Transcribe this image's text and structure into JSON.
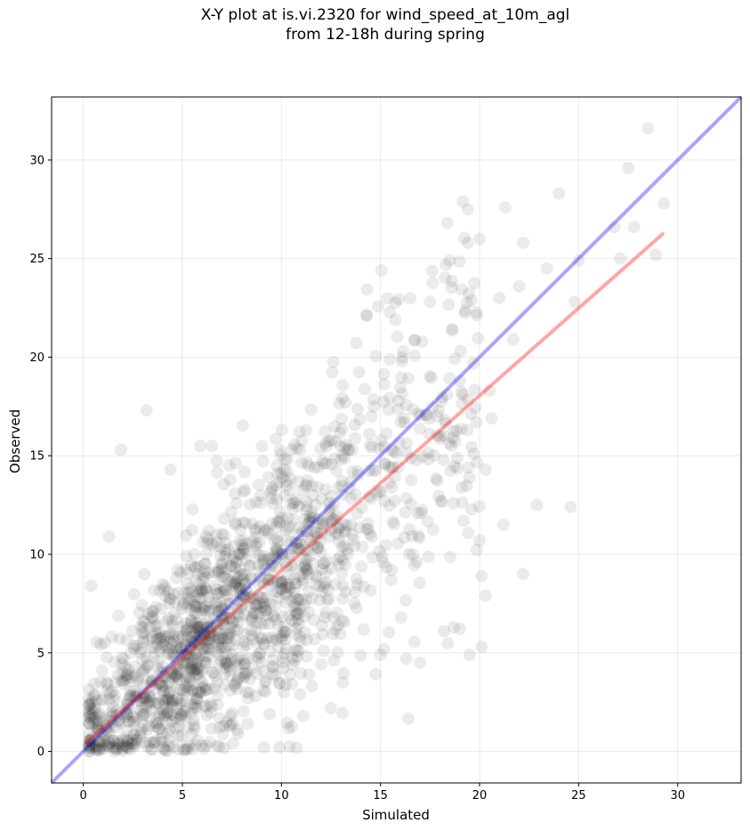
{
  "chart_data": {
    "type": "scatter",
    "title_line1": "X-Y plot at is.vi.2320 for wind_speed_at_10m_agl",
    "title_line2": "from 12-18h during spring",
    "xlabel": "Simulated",
    "ylabel": "Observed",
    "xlim": [
      -1.6,
      33.2
    ],
    "ylim": [
      -1.6,
      33.2
    ],
    "xticks": [
      0,
      5,
      10,
      15,
      20,
      25,
      30
    ],
    "yticks": [
      0,
      5,
      10,
      15,
      20,
      25,
      30
    ],
    "grid": true,
    "scatter_color": "#000000",
    "scatter_alpha": 0.08,
    "point_count_estimate": 1600,
    "outliers": [
      [
        28.5,
        31.6
      ],
      [
        27.5,
        29.6
      ],
      [
        24.0,
        28.3
      ],
      [
        21.3,
        27.6
      ],
      [
        26.8,
        26.6
      ],
      [
        27.8,
        26.6
      ],
      [
        29.3,
        27.8
      ],
      [
        20.0,
        26.0
      ],
      [
        19.4,
        25.8
      ],
      [
        22.2,
        25.8
      ],
      [
        25.0,
        24.9
      ],
      [
        27.1,
        25.0
      ],
      [
        28.9,
        25.2
      ],
      [
        23.4,
        24.5
      ],
      [
        21.0,
        23.0
      ],
      [
        22.0,
        23.6
      ],
      [
        24.8,
        22.8
      ],
      [
        16.5,
        23.0
      ],
      [
        17.5,
        22.8
      ],
      [
        21.7,
        20.9
      ],
      [
        20.5,
        18.3
      ],
      [
        20.6,
        16.9
      ],
      [
        19.7,
        15.1
      ],
      [
        20.3,
        14.3
      ],
      [
        21.2,
        11.5
      ],
      [
        22.9,
        12.5
      ],
      [
        24.6,
        12.4
      ],
      [
        22.2,
        9.0
      ],
      [
        20.0,
        10.7
      ],
      [
        20.1,
        8.9
      ],
      [
        20.1,
        5.3
      ],
      [
        19.5,
        4.9
      ],
      [
        20.3,
        7.9
      ],
      [
        18.7,
        6.3
      ],
      [
        18.2,
        6.1
      ],
      [
        17.0,
        4.5
      ],
      [
        16.3,
        4.7
      ],
      [
        15.0,
        4.9
      ],
      [
        3.2,
        17.3
      ],
      [
        1.9,
        15.3
      ],
      [
        4.4,
        14.3
      ],
      [
        5.9,
        15.5
      ],
      [
        6.5,
        15.5
      ],
      [
        1.3,
        10.9
      ],
      [
        0.4,
        8.4
      ],
      [
        9.9,
        0.2
      ],
      [
        11.1,
        1.8
      ],
      [
        12.5,
        2.2
      ],
      [
        10.8,
        4.8
      ],
      [
        13.1,
        3.5
      ],
      [
        8.3,
        1.4
      ],
      [
        9.4,
        1.9
      ]
    ],
    "series": [
      {
        "name": "",
        "type": "line",
        "color": "#0000ff",
        "alpha": 0.35,
        "x": [
          -1.6,
          33.2
        ],
        "y": [
          -1.6,
          33.2
        ]
      },
      {
        "name": "",
        "type": "line",
        "color": "#ff0000",
        "alpha": 0.35,
        "x": [
          0.1,
          29.3
        ],
        "y": [
          0.4,
          26.3
        ]
      }
    ]
  }
}
